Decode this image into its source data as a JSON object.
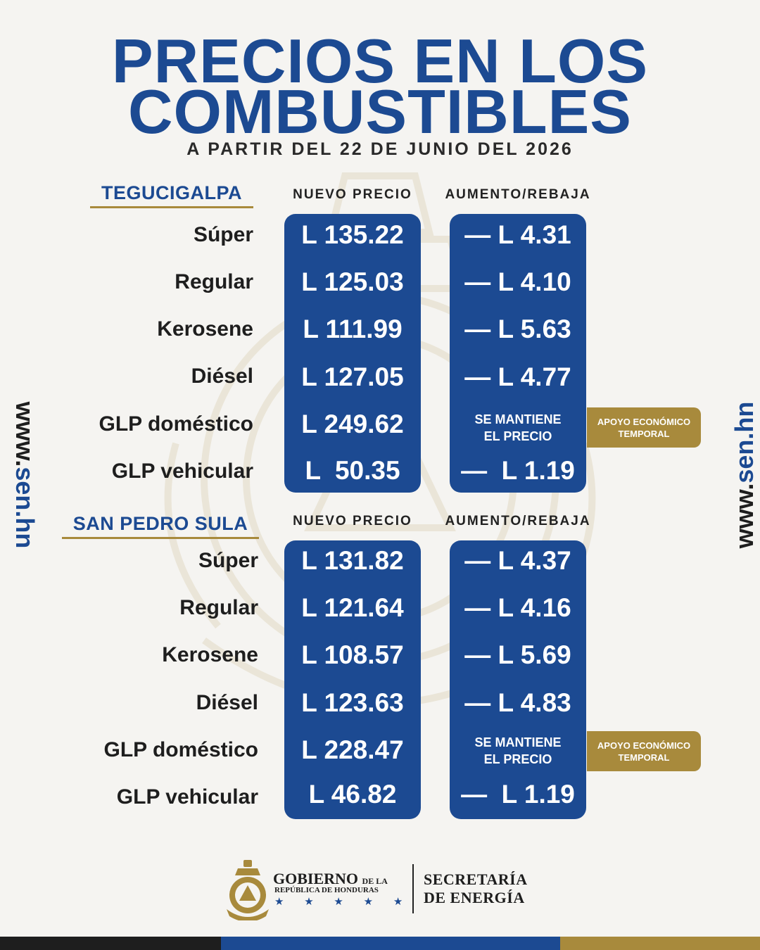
{
  "header": {
    "title_line1": "PRECIOS EN LOS",
    "title_line2": "COMBUSTIBLES",
    "subtitle": "A PARTIR DEL 22 DE JUNIO DEL 2026"
  },
  "columns": {
    "nuevo": "NUEVO PRECIO",
    "cambio": "AUMENTO/REBAJA"
  },
  "sections": [
    {
      "city": "TEGUCIGALPA",
      "rows": [
        {
          "fuel": "Súper",
          "price": "L 135.22",
          "change": "— L 4.31"
        },
        {
          "fuel": "Regular",
          "price": "L 125.03",
          "change": "— L 4.10"
        },
        {
          "fuel": "Kerosene",
          "price": "L 111.99",
          "change": "— L 5.63"
        },
        {
          "fuel": "Diésel",
          "price": "L 127.05",
          "change": "— L 4.77"
        },
        {
          "fuel": "GLP doméstico",
          "price": "L 249.62",
          "change_line1": "SE MANTIENE",
          "change_line2": "EL PRECIO",
          "badge_line1": "APOYO ECONÓMICO",
          "badge_line2": "TEMPORAL"
        },
        {
          "fuel": "GLP vehicular",
          "price": "L  50.35",
          "change": "—  L 1.19"
        }
      ]
    },
    {
      "city": "SAN PEDRO SULA",
      "rows": [
        {
          "fuel": "Súper",
          "price": "L 131.82",
          "change": "— L 4.37"
        },
        {
          "fuel": "Regular",
          "price": "L 121.64",
          "change": "— L 4.16"
        },
        {
          "fuel": "Kerosene",
          "price": "L 108.57",
          "change": "— L 5.69"
        },
        {
          "fuel": "Diésel",
          "price": "L 123.63",
          "change": "— L 4.83"
        },
        {
          "fuel": "GLP doméstico",
          "price": "L 228.47",
          "change_line1": "SE MANTIENE",
          "change_line2": "EL PRECIO",
          "badge_line1": "APOYO ECONÓMICO",
          "badge_line2": "TEMPORAL"
        },
        {
          "fuel": "GLP vehicular",
          "price": "L 46.82",
          "change": "—  L 1.19"
        }
      ]
    }
  ],
  "side_url": {
    "prefix": "www.",
    "domain": "sen.hn"
  },
  "footer": {
    "gobierno": "GOBIERNO",
    "de_la": "DE LA",
    "republica": "REPÚBLICA DE HONDURAS",
    "stars": "★ ★ ★ ★ ★",
    "secretaria": "SECRETARÍA",
    "energia": "DE ENERGÍA"
  },
  "colors": {
    "navy": "#1c4a92",
    "gold": "#a88a3c",
    "dark": "#1e1e1e",
    "background": "#f5f4f1"
  }
}
